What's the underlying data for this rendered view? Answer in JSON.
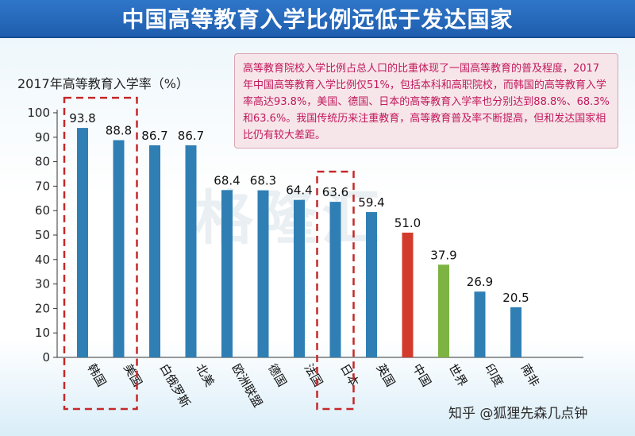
{
  "title": "中国高等教育入学比例远低于发达国家",
  "note": "高等教育院校入学比例占总人口的比重体现了一国高等教育的普及程度，2017年中国高等教育入学比例仅51%，包括本科和高职院校，而韩国的高等教育入学率高达93.8%，美国、德国、日本的高等教育入学率也分别达到88.8%、68.3%和63.6%。我国传统历来注重教育，高等教育普及率不断提高，但和发达国家相比仍有较大差距。",
  "watermark": "格隆汇",
  "credit": "知乎 @狐狸先森几点钟",
  "colors": {
    "default": "#2f7fb5",
    "china": "#d23b2c",
    "world": "#7cb342",
    "highlight": "#c62828"
  },
  "chart_data": {
    "type": "bar",
    "ylabel": "2017年高等教育入学率（%）",
    "ylim": [
      0,
      100
    ],
    "yticks": [
      0,
      10,
      20,
      30,
      40,
      50,
      60,
      70,
      80,
      90,
      100
    ],
    "categories": [
      "韩国",
      "美国",
      "白俄罗斯",
      "北美",
      "欧洲联盟",
      "德国",
      "法国",
      "日本",
      "英国",
      "中国",
      "世界",
      "印度",
      "南非"
    ],
    "values": [
      93.8,
      88.8,
      86.7,
      86.7,
      68.4,
      68.3,
      64.4,
      63.6,
      59.4,
      51.0,
      37.9,
      26.9,
      20.5
    ],
    "value_labels": [
      "93.8",
      "88.8",
      "86.7",
      "86.7",
      "68.4",
      "68.3",
      "64.4",
      "63.6",
      "59.4",
      "51.0",
      "37.9",
      "26.9",
      "20.5"
    ],
    "bar_colors": [
      "default",
      "default",
      "default",
      "default",
      "default",
      "default",
      "default",
      "default",
      "default",
      "china",
      "world",
      "default",
      "default"
    ],
    "highlighted_groups": [
      [
        "韩国",
        "美国"
      ],
      [
        "日本"
      ]
    ],
    "grid": false
  }
}
